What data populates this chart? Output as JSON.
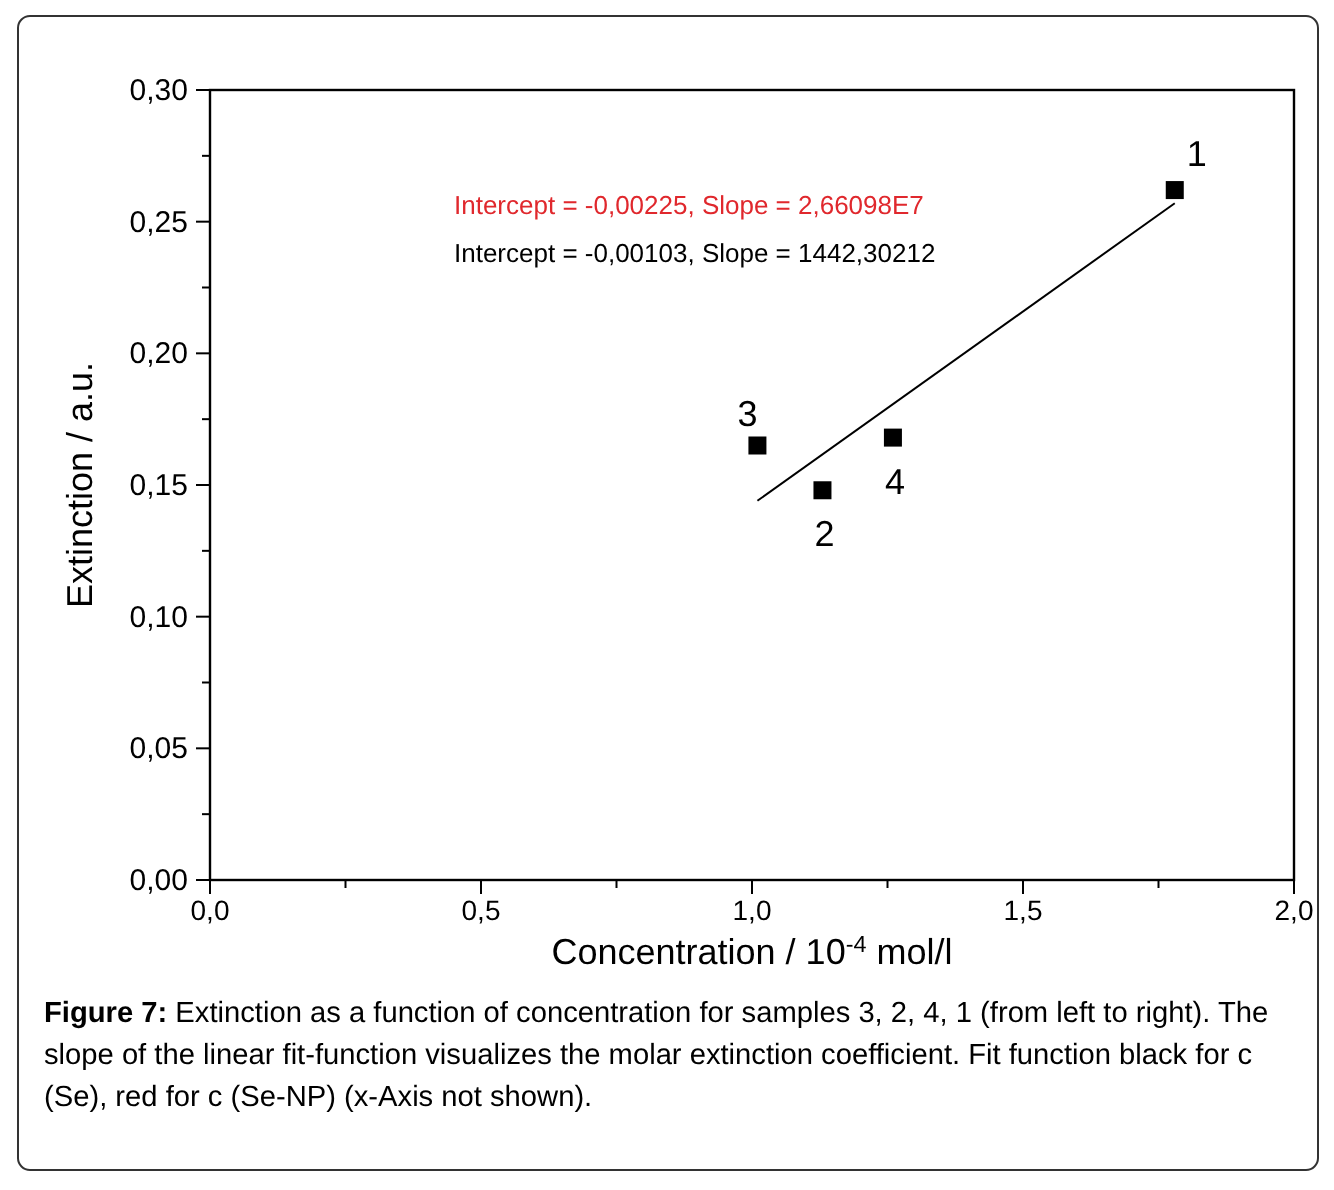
{
  "chart_data": {
    "type": "scatter",
    "xlabel": "Concentration / 10$^{-4}$ mol/l",
    "ylabel": "Extinction / a.u.",
    "xlim": [
      0,
      2
    ],
    "ylim": [
      0,
      0.3
    ],
    "xticks": [
      {
        "value": 0,
        "label": "0,0"
      },
      {
        "value": 0.25,
        "label": null
      },
      {
        "value": 0.5,
        "label": "0,5"
      },
      {
        "value": 0.75,
        "label": null
      },
      {
        "value": 1,
        "label": "1,0"
      },
      {
        "value": 1.25,
        "label": null
      },
      {
        "value": 1.5,
        "label": "1,5"
      },
      {
        "value": 1.75,
        "label": null
      },
      {
        "value": 2,
        "label": "2,0"
      }
    ],
    "yticks": [
      {
        "value": 0,
        "label": "0,00"
      },
      {
        "value": 0.025,
        "label": null
      },
      {
        "value": 0.05,
        "label": "0,05"
      },
      {
        "value": 0.075,
        "label": null
      },
      {
        "value": 0.1,
        "label": "0,10"
      },
      {
        "value": 0.125,
        "label": null
      },
      {
        "value": 0.15,
        "label": "0,15"
      },
      {
        "value": 0.175,
        "label": null
      },
      {
        "value": 0.2,
        "label": "0,20"
      },
      {
        "value": 0.225,
        "label": null
      },
      {
        "value": 0.25,
        "label": "0,25"
      },
      {
        "value": 0.275,
        "label": null
      },
      {
        "value": 0.3,
        "label": "0,30"
      }
    ],
    "marker": "square",
    "series": [
      {
        "color": "#000000",
        "x": [
          1.78,
          1.13,
          1.01,
          1.26
        ],
        "values": [
          0.262,
          0.148,
          0.165,
          0.168
        ]
      },
      {
        "type": "line",
        "marker": "none",
        "color": "#000000",
        "x": [
          1.01,
          1.78
        ],
        "values": [
          0.144,
          0.257
        ]
      }
    ],
    "annotations": [
      {
        "text": "1",
        "x": 1.78,
        "y": 0.262
      },
      {
        "text": "2",
        "x": 1.13,
        "y": 0.148
      },
      {
        "text": "3",
        "x": 1.01,
        "y": 0.165
      },
      {
        "text": "4",
        "x": 1.26,
        "y": 0.168
      },
      "Intercept = -0,00225, Slope = 2,66098E7",
      "Intercept = -0,00103, Slope = 1442,30212",
      "Figure 7: Extinction as a function of concentration for samples 3, 2, 4, 1 (from left to right). The slope of the linear fit-function visualizes the molar extinction coefficient. Fit function black for c (Se), red for c (Se-NP) (x-Axis not shown)."
    ]
  }
}
